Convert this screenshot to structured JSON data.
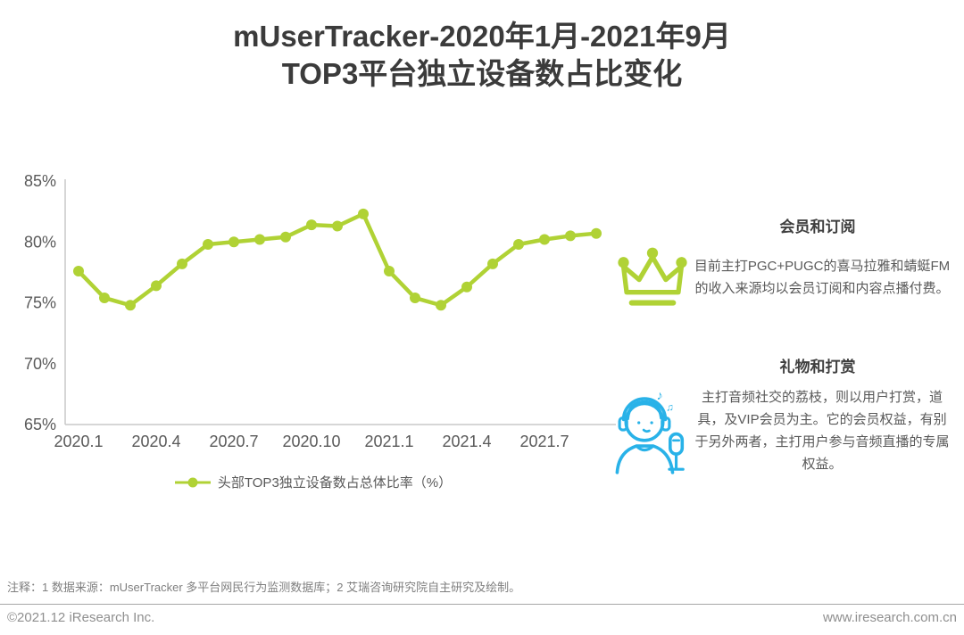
{
  "title": {
    "line1": "mUserTracker-2020年1月-2021年9月",
    "line2": "TOP3平台独立设备数占比变化"
  },
  "chart_data": {
    "type": "line",
    "title": "mUserTracker-2020年1月-2021年9月 TOP3平台独立设备数占比变化",
    "x": [
      "2020.1",
      "2020.2",
      "2020.3",
      "2020.4",
      "2020.5",
      "2020.6",
      "2020.7",
      "2020.8",
      "2020.9",
      "2020.10",
      "2020.11",
      "2020.12",
      "2021.1",
      "2021.2",
      "2021.3",
      "2021.4",
      "2021.5",
      "2021.6",
      "2021.7",
      "2021.8",
      "2021.9"
    ],
    "x_tick_indices": [
      0,
      3,
      6,
      9,
      12,
      15,
      18
    ],
    "series": [
      {
        "name": "头部TOP3独立设备数占总体比率（%）",
        "values": [
          77.6,
          75.4,
          74.8,
          76.4,
          78.2,
          79.8,
          80.0,
          80.2,
          80.4,
          81.4,
          81.3,
          82.3,
          77.6,
          75.4,
          74.8,
          76.3,
          78.2,
          79.8,
          80.2,
          80.5,
          80.7
        ]
      }
    ],
    "ylim": [
      65,
      85
    ],
    "yticks": [
      65,
      70,
      75,
      80,
      85
    ],
    "ytick_suffix": "%",
    "grid": false,
    "legend_position": "bottom"
  },
  "panels": [
    {
      "icon": "crown-icon",
      "title": "会员和订阅",
      "body": "目前主打PGC+PUGC的喜马拉雅和蜻蜓FM的收入来源均以会员订阅和内容点播付费。"
    },
    {
      "icon": "singer-icon",
      "title": "礼物和打赏",
      "body": "主打音频社交的荔枝，则以用户打赏，道具，及VIP会员为主。它的会员权益，有别于另外两者，主打用户参与音频直播的专属权益。"
    }
  ],
  "footnote": "注释：1 数据来源：mUserTracker 多平台网民行为监测数据库；2 艾瑞咨询研究院自主研究及绘制。",
  "footer": {
    "left": "©2021.12 iResearch Inc.",
    "right": "www.iresearch.com.cn"
  },
  "colors": {
    "accent_green": "#b0d235",
    "accent_blue": "#29b2e8",
    "axis_line": "#c9c9c9",
    "axis_text": "#595959",
    "title_text": "#3b3b3b"
  }
}
